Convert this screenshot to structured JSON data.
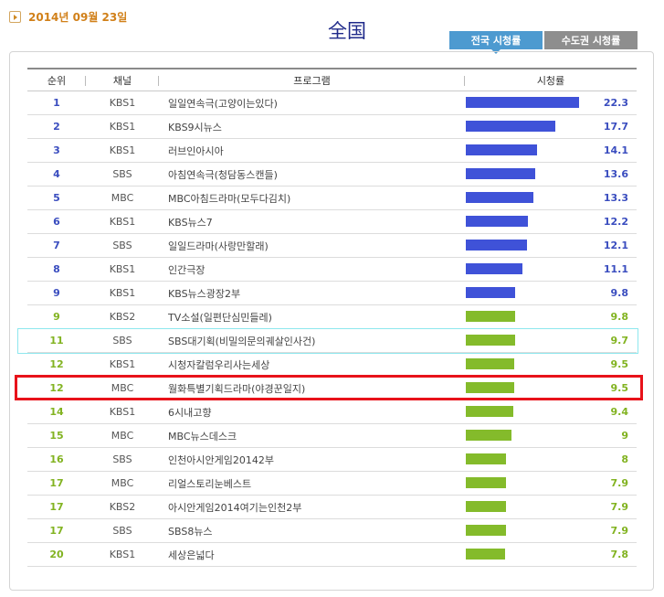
{
  "date": "2014년 09월 23일",
  "title": "全国",
  "tabs": [
    {
      "label": "전국 시청률",
      "active": true
    },
    {
      "label": "수도권 시청률",
      "active": false
    }
  ],
  "headers": {
    "rank": "순위",
    "channel": "채널",
    "program": "프로그램",
    "rating": "시청률"
  },
  "colors": {
    "blue_bar": "#3f52d8",
    "green_bar": "#84bb2b",
    "blue_text": "#3a4dbf",
    "green_text": "#82b321",
    "highlight_cyan": "#8ee7ee",
    "highlight_red": "#e8121a"
  },
  "rows": [
    {
      "rank": "1",
      "channel": "KBS1",
      "program": "일일연속극(고양이는있다)",
      "rating": "22.3",
      "value": 22.3,
      "color": "blue"
    },
    {
      "rank": "2",
      "channel": "KBS1",
      "program": "KBS9시뉴스",
      "rating": "17.7",
      "value": 17.7,
      "color": "blue"
    },
    {
      "rank": "3",
      "channel": "KBS1",
      "program": "러브인아시아",
      "rating": "14.1",
      "value": 14.1,
      "color": "blue"
    },
    {
      "rank": "4",
      "channel": "SBS",
      "program": "아침연속극(청담동스캔들)",
      "rating": "13.6",
      "value": 13.6,
      "color": "blue"
    },
    {
      "rank": "5",
      "channel": "MBC",
      "program": "MBC아침드라마(모두다김치)",
      "rating": "13.3",
      "value": 13.3,
      "color": "blue"
    },
    {
      "rank": "6",
      "channel": "KBS1",
      "program": "KBS뉴스7",
      "rating": "12.2",
      "value": 12.2,
      "color": "blue"
    },
    {
      "rank": "7",
      "channel": "SBS",
      "program": "일일드라마(사랑만할래)",
      "rating": "12.1",
      "value": 12.1,
      "color": "blue"
    },
    {
      "rank": "8",
      "channel": "KBS1",
      "program": "인간극장",
      "rating": "11.1",
      "value": 11.1,
      "color": "blue"
    },
    {
      "rank": "9",
      "channel": "KBS1",
      "program": "KBS뉴스광장2부",
      "rating": "9.8",
      "value": 9.8,
      "color": "blue"
    },
    {
      "rank": "9",
      "channel": "KBS2",
      "program": "TV소설(일편단심민들레)",
      "rating": "9.8",
      "value": 9.8,
      "color": "green"
    },
    {
      "rank": "11",
      "channel": "SBS",
      "program": "SBS대기획(비밀의문의궤살인사건)",
      "rating": "9.7",
      "value": 9.7,
      "color": "green"
    },
    {
      "rank": "12",
      "channel": "KBS1",
      "program": "시청자칼럼우리사는세상",
      "rating": "9.5",
      "value": 9.5,
      "color": "green"
    },
    {
      "rank": "12",
      "channel": "MBC",
      "program": "월화특별기획드라마(야경꾼일지)",
      "rating": "9.5",
      "value": 9.5,
      "color": "green"
    },
    {
      "rank": "14",
      "channel": "KBS1",
      "program": "6시내고향",
      "rating": "9.4",
      "value": 9.4,
      "color": "green"
    },
    {
      "rank": "15",
      "channel": "MBC",
      "program": "MBC뉴스데스크",
      "rating": "9",
      "value": 9,
      "color": "green"
    },
    {
      "rank": "16",
      "channel": "SBS",
      "program": "인천아시안게임20142부",
      "rating": "8",
      "value": 8,
      "color": "green"
    },
    {
      "rank": "17",
      "channel": "MBC",
      "program": "리얼스토리눈베스트",
      "rating": "7.9",
      "value": 7.9,
      "color": "green"
    },
    {
      "rank": "17",
      "channel": "KBS2",
      "program": "아시안게임2014여기는인천2부",
      "rating": "7.9",
      "value": 7.9,
      "color": "green"
    },
    {
      "rank": "17",
      "channel": "SBS",
      "program": "SBS8뉴스",
      "rating": "7.9",
      "value": 7.9,
      "color": "green"
    },
    {
      "rank": "20",
      "channel": "KBS1",
      "program": "세상은넓다",
      "rating": "7.8",
      "value": 7.8,
      "color": "green"
    }
  ],
  "highlighted_rows": {
    "cyan": 10,
    "red": 12
  }
}
